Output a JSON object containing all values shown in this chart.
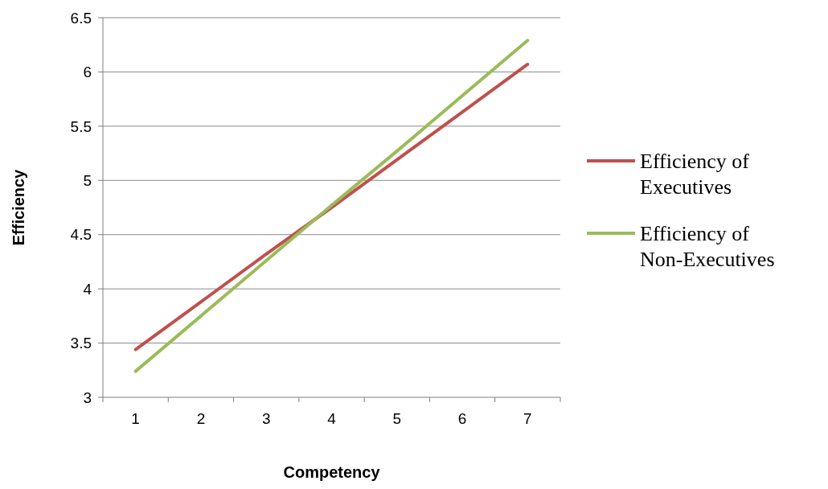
{
  "chart_data": {
    "type": "line",
    "xlabel": "Competency",
    "ylabel": "Efficiency",
    "categories": [
      "1",
      "2",
      "3",
      "4",
      "5",
      "6",
      "7"
    ],
    "series": [
      {
        "name": "Efficiency of Executives",
        "color": "#c0504d",
        "values": [
          3.44,
          3.88,
          4.32,
          4.75,
          5.19,
          5.63,
          6.07
        ]
      },
      {
        "name": "Efficiency of Non-Executives",
        "color": "#9bbb59",
        "values": [
          3.24,
          3.75,
          4.26,
          4.77,
          5.27,
          5.78,
          6.29
        ]
      }
    ],
    "ylim": [
      3,
      6.5
    ],
    "yticks": [
      3,
      3.5,
      4,
      4.5,
      5,
      5.5,
      6,
      6.5
    ],
    "grid": "y",
    "legend": "right",
    "marker": "none",
    "line_style": "solid"
  }
}
